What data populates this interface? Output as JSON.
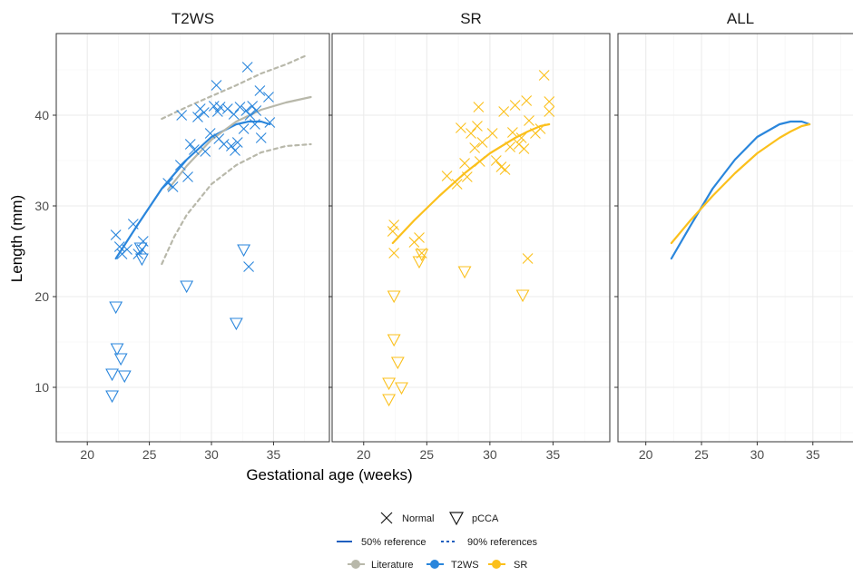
{
  "colors": {
    "t2ws": "#2a86dc",
    "sr": "#fbc01c",
    "literature": "#b8b8aa",
    "grid": "#ebebeb",
    "frame": "#333333",
    "legend_line": "#1f5fbf"
  },
  "chart_data": [
    {
      "type": "scatter",
      "panel": "T2WS",
      "xlabel": "Gestational age (weeks)",
      "ylabel": "Length (mm)",
      "xlim": [
        17.5,
        39.5
      ],
      "ylim": [
        4,
        49
      ],
      "x_ticks": [
        20,
        25,
        30,
        35
      ],
      "y_ticks": [
        10,
        20,
        30,
        40
      ],
      "grid": true,
      "series": [
        {
          "name": "Normal",
          "marker": "cross",
          "color_key": "t2ws",
          "points": [
            [
              22.3,
              26.8
            ],
            [
              22.6,
              25.5
            ],
            [
              22.8,
              24.7
            ],
            [
              23.2,
              25.2
            ],
            [
              23.7,
              28.0
            ],
            [
              24.1,
              24.7
            ],
            [
              24.5,
              26.1
            ],
            [
              24.4,
              25.2
            ],
            [
              26.5,
              32.5
            ],
            [
              26.9,
              32.1
            ],
            [
              27.5,
              34.5
            ],
            [
              27.6,
              40.0
            ],
            [
              28.1,
              33.2
            ],
            [
              28.3,
              36.8
            ],
            [
              28.6,
              36.2
            ],
            [
              28.9,
              39.8
            ],
            [
              29.1,
              40.7
            ],
            [
              29.4,
              40.3
            ],
            [
              29.5,
              36.0
            ],
            [
              29.9,
              38.0
            ],
            [
              30.4,
              43.3
            ],
            [
              30.5,
              40.4
            ],
            [
              30.6,
              37.4
            ],
            [
              30.7,
              40.9
            ],
            [
              31.0,
              36.8
            ],
            [
              31.3,
              40.7
            ],
            [
              31.6,
              36.6
            ],
            [
              31.8,
              40.1
            ],
            [
              31.9,
              36.1
            ],
            [
              32.1,
              37.0
            ],
            [
              32.3,
              40.9
            ],
            [
              32.6,
              38.5
            ],
            [
              32.8,
              40.5
            ],
            [
              32.9,
              45.3
            ],
            [
              33.1,
              40.0
            ],
            [
              33.3,
              41.0
            ],
            [
              33.5,
              39.0
            ],
            [
              33.6,
              40.5
            ],
            [
              33.9,
              42.7
            ],
            [
              34.0,
              37.5
            ],
            [
              34.6,
              42.0
            ],
            [
              34.7,
              39.2
            ],
            [
              30.2,
              41.0
            ]
          ]
        },
        {
          "name": "pCCA",
          "marker": "triangle-down",
          "color_key": "t2ws",
          "points": [
            [
              22.0,
              11.5
            ],
            [
              22.0,
              9.1
            ],
            [
              22.3,
              18.9
            ],
            [
              22.4,
              14.3
            ],
            [
              22.7,
              13.2
            ],
            [
              23.0,
              11.3
            ],
            [
              24.4,
              24.2
            ],
            [
              24.3,
              25.4
            ],
            [
              28.0,
              21.2
            ],
            [
              32.0,
              17.1
            ],
            [
              32.6,
              25.2
            ]
          ]
        },
        {
          "name": "Normal",
          "marker": "cross",
          "color_key": "t2ws",
          "points": [
            [
              33.0,
              23.3
            ]
          ]
        }
      ],
      "curves": [
        {
          "name": "T2WS",
          "style": "solid",
          "color_key": "t2ws",
          "points": [
            [
              22.3,
              24.2
            ],
            [
              24.0,
              27.8
            ],
            [
              26.0,
              31.9
            ],
            [
              28.0,
              35.1
            ],
            [
              30.0,
              37.6
            ],
            [
              32.0,
              39.0
            ],
            [
              33.0,
              39.3
            ],
            [
              34.0,
              39.3
            ],
            [
              34.7,
              39.0
            ]
          ]
        },
        {
          "name": "Literature",
          "style": "solid",
          "color_key": "literature",
          "points": [
            [
              26.5,
              31.8
            ],
            [
              28.0,
              34.4
            ],
            [
              30.0,
              37.3
            ],
            [
              32.0,
              39.3
            ],
            [
              34.0,
              40.6
            ],
            [
              36.0,
              41.4
            ],
            [
              38.0,
              42.0
            ]
          ]
        },
        {
          "name": "Literature",
          "style": "dashed",
          "color_key": "literature",
          "points": [
            [
              26.0,
              39.6
            ],
            [
              28.0,
              40.9
            ],
            [
              30.0,
              42.1
            ],
            [
              32.0,
              43.3
            ],
            [
              34.0,
              44.6
            ],
            [
              36.0,
              45.6
            ],
            [
              37.5,
              46.5
            ]
          ]
        },
        {
          "name": "Literature",
          "style": "dashed",
          "color_key": "literature",
          "points": [
            [
              26.0,
              23.6
            ],
            [
              27.0,
              26.6
            ],
            [
              28.0,
              29.0
            ],
            [
              30.0,
              32.4
            ],
            [
              32.0,
              34.5
            ],
            [
              34.0,
              35.9
            ],
            [
              36.0,
              36.6
            ],
            [
              38.0,
              36.8
            ]
          ]
        }
      ]
    },
    {
      "type": "scatter",
      "panel": "SR",
      "xlim": [
        17.5,
        39.5
      ],
      "ylim": [
        4,
        49
      ],
      "x_ticks": [
        20,
        25,
        30,
        35
      ],
      "grid": true,
      "series": [
        {
          "name": "Normal",
          "marker": "cross",
          "color_key": "sr",
          "points": [
            [
              22.4,
              27.9
            ],
            [
              22.3,
              27.2
            ],
            [
              22.4,
              24.8
            ],
            [
              24.0,
              26.0
            ],
            [
              24.4,
              26.5
            ],
            [
              24.6,
              24.8
            ],
            [
              26.6,
              33.3
            ],
            [
              27.4,
              32.4
            ],
            [
              27.7,
              38.6
            ],
            [
              28.0,
              34.7
            ],
            [
              28.2,
              33.2
            ],
            [
              28.5,
              38.0
            ],
            [
              28.8,
              36.4
            ],
            [
              29.0,
              38.8
            ],
            [
              29.1,
              40.9
            ],
            [
              29.2,
              34.9
            ],
            [
              29.4,
              37.0
            ],
            [
              30.2,
              38.0
            ],
            [
              30.5,
              35.0
            ],
            [
              30.9,
              34.3
            ],
            [
              31.1,
              40.4
            ],
            [
              31.2,
              34.0
            ],
            [
              31.6,
              36.5
            ],
            [
              31.8,
              38.1
            ],
            [
              32.0,
              41.1
            ],
            [
              32.3,
              36.8
            ],
            [
              32.5,
              37.5
            ],
            [
              32.7,
              36.3
            ],
            [
              32.9,
              41.6
            ],
            [
              33.1,
              39.4
            ],
            [
              33.6,
              38.0
            ],
            [
              34.0,
              38.5
            ],
            [
              34.3,
              44.4
            ],
            [
              34.7,
              41.5
            ],
            [
              34.7,
              40.4
            ],
            [
              33.0,
              24.2
            ]
          ]
        },
        {
          "name": "pCCA",
          "marker": "triangle-down",
          "color_key": "sr",
          "points": [
            [
              22.0,
              10.5
            ],
            [
              22.0,
              8.7
            ],
            [
              22.4,
              20.1
            ],
            [
              22.4,
              15.3
            ],
            [
              22.7,
              12.8
            ],
            [
              23.0,
              10.0
            ],
            [
              24.4,
              23.9
            ],
            [
              24.6,
              24.7
            ],
            [
              28.0,
              22.8
            ],
            [
              32.6,
              20.2
            ]
          ]
        }
      ],
      "curves": [
        {
          "name": "SR",
          "style": "solid",
          "color_key": "sr",
          "points": [
            [
              22.3,
              25.9
            ],
            [
              24.0,
              28.4
            ],
            [
              26.0,
              31.1
            ],
            [
              28.0,
              33.6
            ],
            [
              30.0,
              35.8
            ],
            [
              32.0,
              37.5
            ],
            [
              33.0,
              38.2
            ],
            [
              34.0,
              38.8
            ],
            [
              34.7,
              39.0
            ]
          ]
        }
      ]
    },
    {
      "type": "line",
      "panel": "ALL",
      "xlim": [
        17.5,
        39.5
      ],
      "ylim": [
        4,
        49
      ],
      "x_ticks": [
        20,
        25,
        30,
        35
      ],
      "grid": true,
      "curves": [
        {
          "name": "T2WS",
          "style": "solid",
          "color_key": "t2ws",
          "points": [
            [
              22.3,
              24.2
            ],
            [
              24.0,
              27.8
            ],
            [
              26.0,
              31.9
            ],
            [
              28.0,
              35.1
            ],
            [
              30.0,
              37.6
            ],
            [
              32.0,
              39.0
            ],
            [
              33.0,
              39.3
            ],
            [
              34.0,
              39.3
            ],
            [
              34.7,
              39.0
            ]
          ]
        },
        {
          "name": "SR",
          "style": "solid",
          "color_key": "sr",
          "points": [
            [
              22.3,
              25.9
            ],
            [
              24.0,
              28.4
            ],
            [
              26.0,
              31.1
            ],
            [
              28.0,
              33.6
            ],
            [
              30.0,
              35.8
            ],
            [
              32.0,
              37.5
            ],
            [
              33.0,
              38.2
            ],
            [
              34.0,
              38.8
            ],
            [
              34.7,
              39.0
            ]
          ]
        }
      ]
    }
  ],
  "legend": {
    "placement": "bottom",
    "shape": {
      "normal": "Normal",
      "pcca": "pCCA"
    },
    "linetype": {
      "median": "50% reference",
      "range": "90% references"
    },
    "colour": {
      "literature": "Literature",
      "t2ws": "T2WS",
      "sr": "SR"
    }
  }
}
